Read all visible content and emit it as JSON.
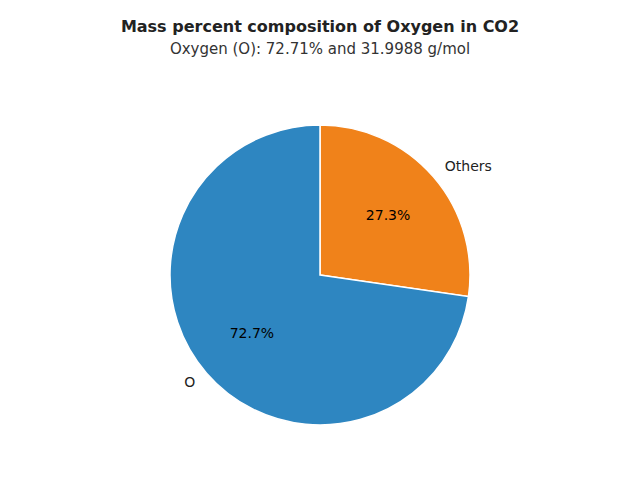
{
  "chart_data": {
    "type": "pie",
    "title": "Mass percent composition of Oxygen in CO2",
    "subtitle": "Oxygen (O): 72.71% and 31.9988 g/mol",
    "categories": [
      "Others",
      "O"
    ],
    "values": [
      27.3,
      72.7
    ],
    "value_labels": [
      "27.3%",
      "72.7%"
    ],
    "colors": [
      "#f0821a",
      "#2e86c1"
    ],
    "data_labels": true
  }
}
